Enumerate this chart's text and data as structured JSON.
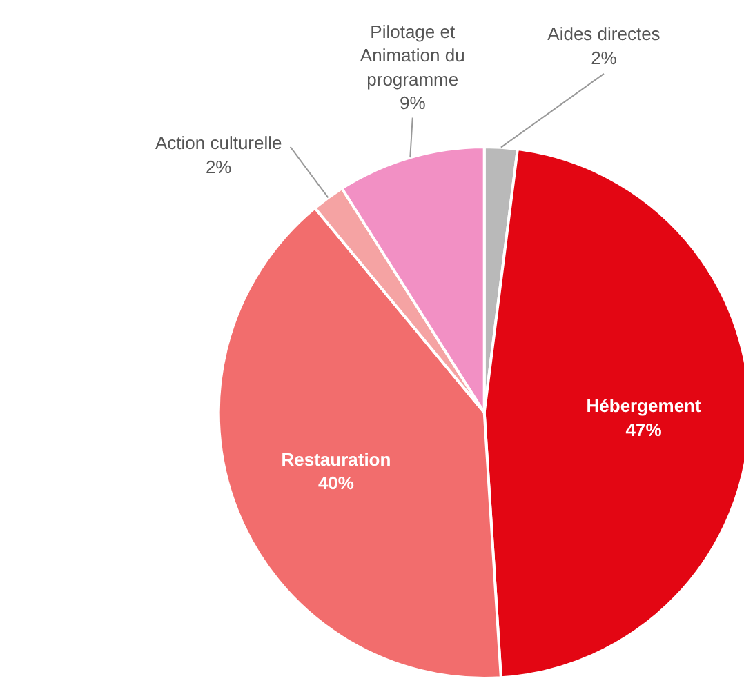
{
  "chart_data": {
    "type": "pie",
    "categories": [
      "Aides directes",
      "Hébergement",
      "Restauration",
      "Action culturelle",
      "Pilotage et\nAnimation du\nprogramme"
    ],
    "values": [
      2,
      47,
      40,
      2,
      9
    ],
    "colors": [
      "#b9b9b9",
      "#e30613",
      "#f26d6d",
      "#f5a3a3",
      "#f290c4"
    ],
    "value_labels": [
      "2%",
      "47%",
      "40%",
      "2%",
      "9%"
    ]
  }
}
